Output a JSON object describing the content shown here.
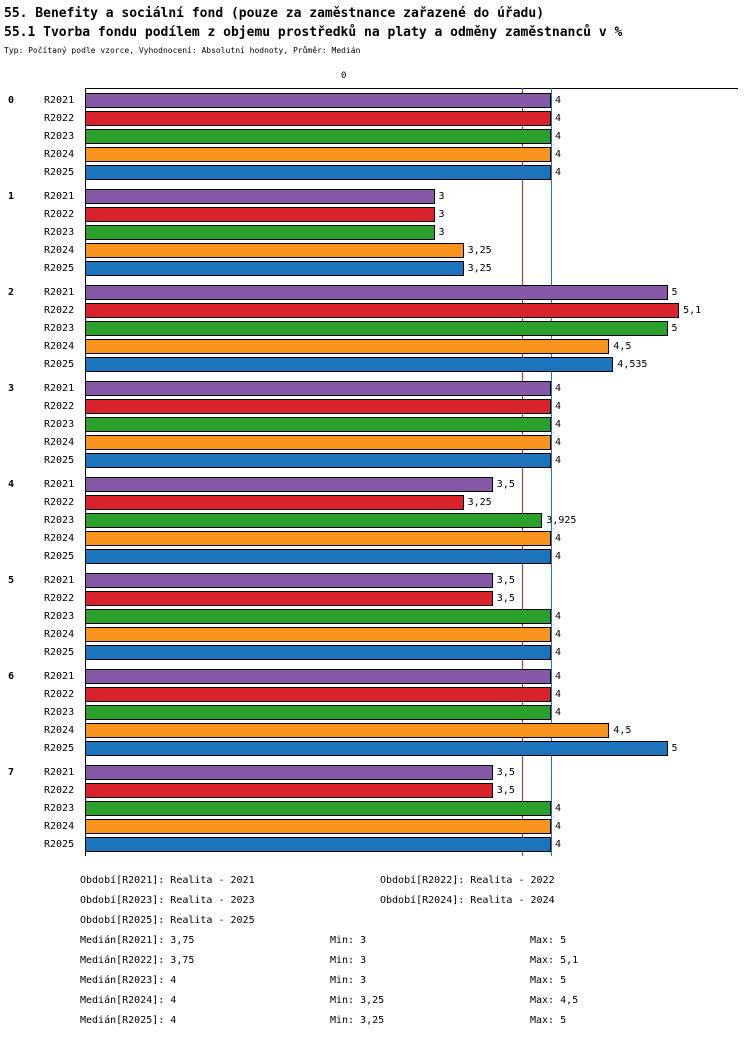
{
  "header": {
    "title1": "55. Benefity a sociální fond (pouze za zaměstnance zařazené do úřadu)",
    "title2": "55.1 Tvorba fondu podílem z objemu prostředků na platy a odměny zaměstnanců v %",
    "subtitle": "Typ: Počítaný podle vzorce, Vyhodnocení: Absolutní hodnoty, Průměr: Medián"
  },
  "chart_data": {
    "type": "bar",
    "orientation": "horizontal",
    "axis_top_label": "0",
    "series": [
      "R2021",
      "R2022",
      "R2023",
      "R2024",
      "R2025"
    ],
    "series_colors": {
      "R2021": "#8558a8",
      "R2022": "#d8232a",
      "R2023": "#2ca02c",
      "R2024": "#f8931d",
      "R2025": "#1c75bc"
    },
    "groups": [
      {
        "label": "0",
        "values": [
          4,
          4,
          4,
          4,
          4
        ],
        "value_labels": [
          "4",
          "4",
          "4",
          "4",
          "4"
        ]
      },
      {
        "label": "1",
        "values": [
          3,
          3,
          3,
          3.25,
          3.25
        ],
        "value_labels": [
          "3",
          "3",
          "3",
          "3,25",
          "3,25"
        ]
      },
      {
        "label": "2",
        "values": [
          5,
          5.1,
          5,
          4.5,
          4.535
        ],
        "value_labels": [
          "5",
          "5,1",
          "5",
          "4,5",
          "4,535"
        ]
      },
      {
        "label": "3",
        "values": [
          4,
          4,
          4,
          4,
          4
        ],
        "value_labels": [
          "4",
          "4",
          "4",
          "4",
          "4"
        ]
      },
      {
        "label": "4",
        "values": [
          3.5,
          3.25,
          3.925,
          4,
          4
        ],
        "value_labels": [
          "3,5",
          "3,25",
          "3,925",
          "4",
          "4"
        ]
      },
      {
        "label": "5",
        "values": [
          3.5,
          3.5,
          4,
          4,
          4
        ],
        "value_labels": [
          "3,5",
          "3,5",
          "4",
          "4",
          "4"
        ]
      },
      {
        "label": "6",
        "values": [
          4,
          4,
          4,
          4.5,
          5
        ],
        "value_labels": [
          "4",
          "4",
          "4",
          "4,5",
          "5"
        ]
      },
      {
        "label": "7",
        "values": [
          3.5,
          3.5,
          4,
          4,
          4
        ],
        "value_labels": [
          "3,5",
          "3,5",
          "4",
          "4",
          "4"
        ]
      }
    ],
    "median_lines": [
      {
        "value": 3.75,
        "color": "#d8232a"
      },
      {
        "value": 4,
        "color": "#1c75bc"
      }
    ],
    "x_min": 0,
    "grid": false,
    "legend_position": "none"
  },
  "footer": {
    "period_rows": [
      [
        "Období[R2021]: Realita - 2021",
        "Období[R2022]: Realita - 2022"
      ],
      [
        "Období[R2023]: Realita - 2023",
        "Období[R2024]: Realita - 2024"
      ],
      [
        "Období[R2025]: Realita - 2025",
        ""
      ]
    ],
    "stat_rows": [
      [
        "Medián[R2021]: 3,75",
        "Min: 3",
        "Max: 5"
      ],
      [
        "Medián[R2022]: 3,75",
        "Min: 3",
        "Max: 5,1"
      ],
      [
        "Medián[R2023]: 4",
        "Min: 3",
        "Max: 5"
      ],
      [
        "Medián[R2024]: 4",
        "Min: 3,25",
        "Max: 4,5"
      ],
      [
        "Medián[R2025]: 4",
        "Min: 3,25",
        "Max: 5"
      ]
    ]
  }
}
